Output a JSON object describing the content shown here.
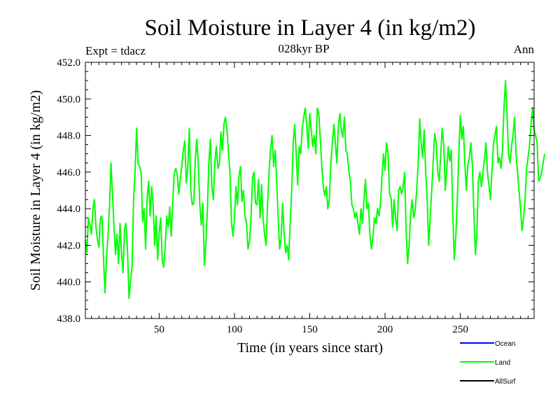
{
  "chart_data": {
    "type": "line",
    "title": "Soil Moisture in Layer 4 (in kg/m2)",
    "subtitle": "028kyr BP",
    "experiment_label": "Expt = tdacz",
    "season_label": "Ann",
    "xlabel": "Time (in years since start)",
    "ylabel": "Soil Moisture in Layer 4 (in kg/m2)",
    "xlim": [
      1,
      299
    ],
    "ylim": [
      438.0,
      452.0
    ],
    "x_ticks": [
      50,
      100,
      150,
      200,
      250
    ],
    "x_tick_labels": [
      "50",
      "100",
      "150",
      "200",
      "250"
    ],
    "y_ticks": [
      438,
      440,
      442,
      444,
      446,
      448,
      450,
      452
    ],
    "y_tick_labels": [
      "438.0",
      "440.0",
      "442.0",
      "444.0",
      "446.0",
      "448.0",
      "450.0",
      "452.0"
    ],
    "legend": [
      {
        "name": "Ocean",
        "color": "#0000ff"
      },
      {
        "name": "Land",
        "color": "#00ff00"
      },
      {
        "name": "AllSurf",
        "color": "#000000"
      }
    ],
    "legend_position": "bottom-right",
    "series": [
      {
        "name": "Land",
        "color": "#00ff00",
        "x_start": 1,
        "x_step": 1,
        "values": [
          442.3,
          441.6,
          443.5,
          443.1,
          442.6,
          444.0,
          444.5,
          443.0,
          442.3,
          441.9,
          443.5,
          443.6,
          441.4,
          439.4,
          441.2,
          442.5,
          444.1,
          446.5,
          444.8,
          443.0,
          441.5,
          442.6,
          441.0,
          443.2,
          441.6,
          440.5,
          442.9,
          443.2,
          441.6,
          439.1,
          440.1,
          440.8,
          444.5,
          446.0,
          448.4,
          446.5,
          446.3,
          446.0,
          443.3,
          444.0,
          441.8,
          444.6,
          445.5,
          443.6,
          445.2,
          444.2,
          442.0,
          443.6,
          441.2,
          442.7,
          443.5,
          441.2,
          440.8,
          441.9,
          443.6,
          443.0,
          444.1,
          442.5,
          444.4,
          445.9,
          446.2,
          445.9,
          444.8,
          445.6,
          446.3,
          447.2,
          447.7,
          445.4,
          446.2,
          448.4,
          445.0,
          444.2,
          444.3,
          446.7,
          447.8,
          446.4,
          444.2,
          443.1,
          444.3,
          440.9,
          442.1,
          443.9,
          446.5,
          447.8,
          445.2,
          444.5,
          446.6,
          447.4,
          446.2,
          446.4,
          448.2,
          447.2,
          448.6,
          449.0,
          448.4,
          447.1,
          446.0,
          443.3,
          442.5,
          443.5,
          445.2,
          444.2,
          445.8,
          446.3,
          444.4,
          445.0,
          443.6,
          443.2,
          441.8,
          442.2,
          443.5,
          445.7,
          446.0,
          444.3,
          444.2,
          445.6,
          443.5,
          445.3,
          443.5,
          442.6,
          442.0,
          444.2,
          446.1,
          447.3,
          448.0,
          446.3,
          447.2,
          445.6,
          443.5,
          441.8,
          442.4,
          444.3,
          442.6,
          441.6,
          442.0,
          441.2,
          443.2,
          445.0,
          447.6,
          448.6,
          447.0,
          445.3,
          447.4,
          447.0,
          448.4,
          449.0,
          449.5,
          448.6,
          447.3,
          449.2,
          448.3,
          447.4,
          448.0,
          447.0,
          449.5,
          449.2,
          447.8,
          446.3,
          445.2,
          444.7,
          445.2,
          444.0,
          444.5,
          446.5,
          447.6,
          448.6,
          447.6,
          446.5,
          448.5,
          449.2,
          448.3,
          447.9,
          449.0,
          447.2,
          447.0,
          446.0,
          445.5,
          444.2,
          444.0,
          443.5,
          443.8,
          443.2,
          442.6,
          444.0,
          443.2,
          444.5,
          445.6,
          444.0,
          444.3,
          442.5,
          441.8,
          442.5,
          443.5,
          443.2,
          444.0,
          443.6,
          444.3,
          445.8,
          447.0,
          446.1,
          447.6,
          447.0,
          444.8,
          444.6,
          443.0,
          444.5,
          443.5,
          442.8,
          445.0,
          445.2,
          444.8,
          445.2,
          446.0,
          442.8,
          441.0,
          442.0,
          443.7,
          444.5,
          443.5,
          443.9,
          445.0,
          446.4,
          448.9,
          447.6,
          446.8,
          448.3,
          446.0,
          444.5,
          442.0,
          443.5,
          445.0,
          446.6,
          448.1,
          447.6,
          446.0,
          445.5,
          447.0,
          448.4,
          447.5,
          445.0,
          446.2,
          447.4,
          446.6,
          447.2,
          443.7,
          441.2,
          442.5,
          444.5,
          447.0,
          449.1,
          447.8,
          448.5,
          446.5,
          445.0,
          446.4,
          446.8,
          447.6,
          446.4,
          443.8,
          441.5,
          442.6,
          445.5,
          446.0,
          445.2,
          446.0,
          446.7,
          447.6,
          446.0,
          445.3,
          444.5,
          446.0,
          447.5,
          448.0,
          448.5,
          446.5,
          446.8,
          446.2,
          447.2,
          449.5,
          451.0,
          449.2,
          447.0,
          446.5,
          447.4,
          448.0,
          449.0,
          447.0,
          446.0,
          445.0,
          444.0,
          442.8,
          443.5,
          444.5,
          446.2,
          446.8,
          447.5,
          448.7,
          449.5,
          448.3,
          448.0,
          447.6,
          445.5,
          445.7,
          446.0,
          446.5,
          447.0
        ]
      }
    ]
  }
}
